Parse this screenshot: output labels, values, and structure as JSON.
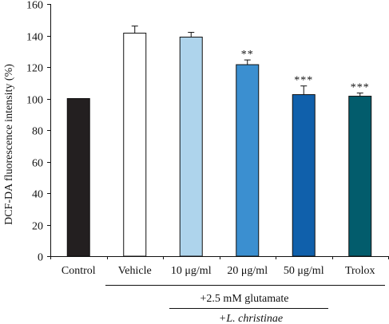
{
  "chart_data": {
    "type": "bar",
    "ylabel": "DCF-DA fluorescence intensity (%)",
    "ylim": [
      0,
      160
    ],
    "yticks": [
      0,
      20,
      40,
      60,
      80,
      100,
      120,
      140,
      160
    ],
    "grid": false,
    "categories": [
      "Control",
      "Vehicle",
      "10 μg/ml",
      "20 μg/ml",
      "50 μg/ml",
      "Trolox"
    ],
    "values": [
      100,
      141.5,
      139,
      121.5,
      102.5,
      101.5
    ],
    "errors": [
      0,
      4.5,
      3,
      3,
      5.5,
      2
    ],
    "significance": [
      "",
      "",
      "",
      "**",
      "***",
      "***"
    ],
    "colors": [
      "#231f20",
      "#ffffff",
      "#aed4ec",
      "#3b8fd0",
      "#1060ab",
      "#025c6c"
    ],
    "group_labels": {
      "glutamate": "+2.5 mM glutamate",
      "extract": "+L. christinae"
    }
  }
}
